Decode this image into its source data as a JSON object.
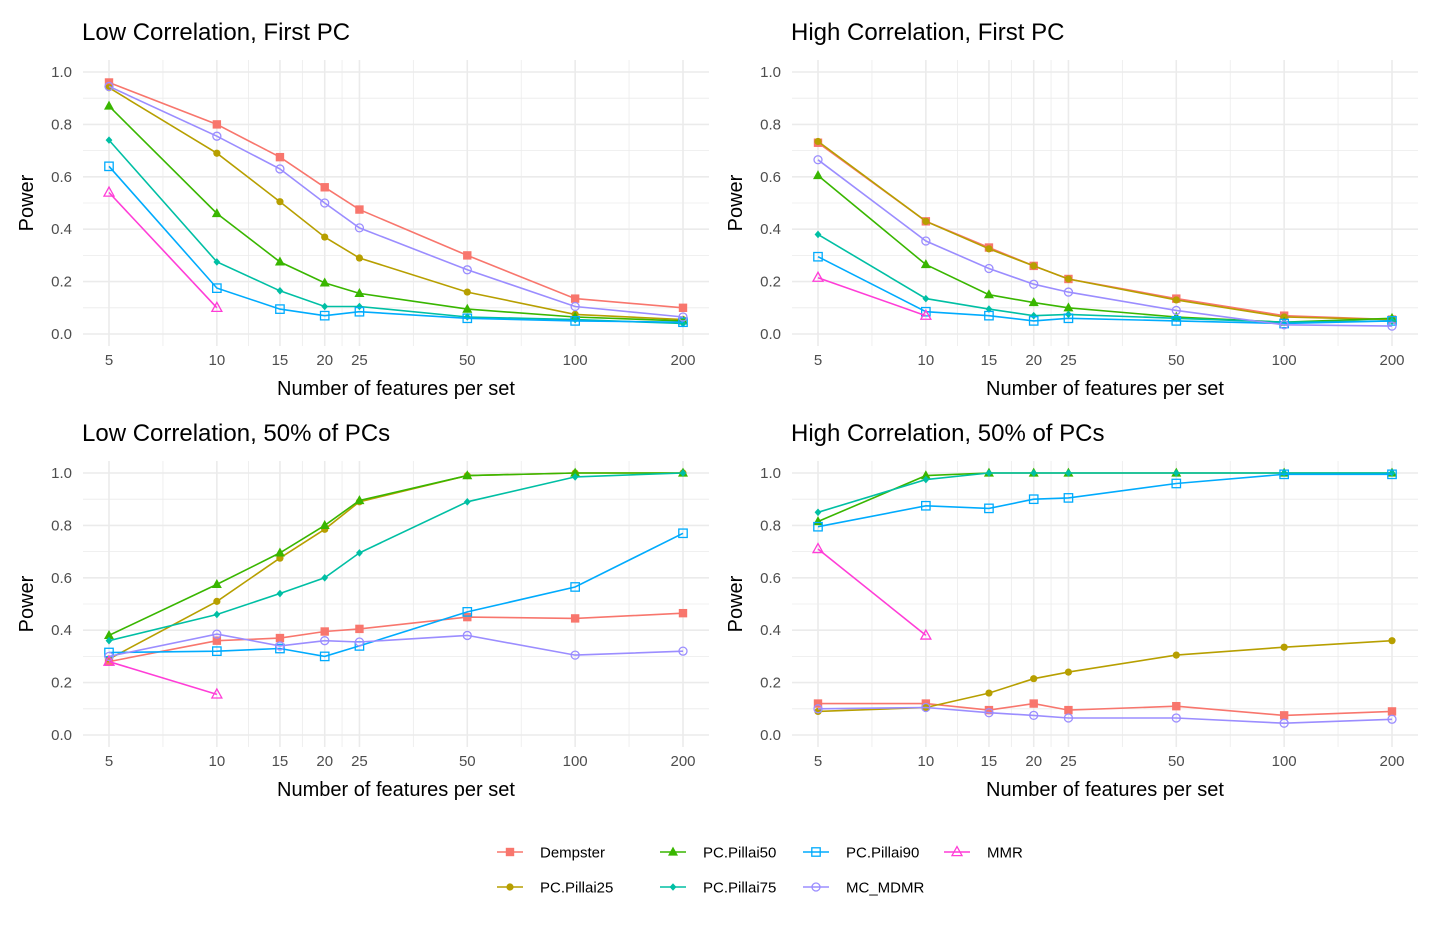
{
  "chart_data": [
    {
      "type": "line",
      "title": "Low Correlation, First PC",
      "xlabel": "Number of features per set",
      "ylabel": "Power",
      "x_scale": "log",
      "x_ticks": [
        5,
        10,
        15,
        20,
        25,
        50,
        100,
        200
      ],
      "y_ticks": [
        0.0,
        0.2,
        0.4,
        0.6,
        0.8,
        1.0
      ],
      "ylim": [
        0,
        1
      ],
      "series": [
        {
          "name": "Dempster",
          "x": [
            5,
            10,
            15,
            20,
            25,
            50,
            100,
            200
          ],
          "values": [
            0.96,
            0.8,
            0.675,
            0.56,
            0.475,
            0.3,
            0.135,
            0.1
          ]
        },
        {
          "name": "PC.Pillai25",
          "x": [
            5,
            10,
            15,
            20,
            25,
            50,
            100,
            200
          ],
          "values": [
            0.94,
            0.69,
            0.505,
            0.37,
            0.29,
            0.16,
            0.075,
            0.055
          ]
        },
        {
          "name": "PC.Pillai50",
          "x": [
            5,
            10,
            15,
            20,
            25,
            50,
            100,
            200
          ],
          "values": [
            0.87,
            0.46,
            0.275,
            0.195,
            0.155,
            0.095,
            0.065,
            0.05
          ]
        },
        {
          "name": "PC.Pillai75",
          "x": [
            5,
            10,
            15,
            20,
            25,
            50,
            100,
            200
          ],
          "values": [
            0.74,
            0.275,
            0.165,
            0.105,
            0.105,
            0.065,
            0.055,
            0.04
          ]
        },
        {
          "name": "PC.Pillai90",
          "x": [
            5,
            10,
            15,
            20,
            25,
            50,
            100,
            200
          ],
          "values": [
            0.64,
            0.175,
            0.095,
            0.07,
            0.085,
            0.06,
            0.05,
            0.045
          ]
        },
        {
          "name": "MC_MDMR",
          "x": [
            5,
            10,
            15,
            20,
            25,
            50,
            100,
            200
          ],
          "values": [
            0.945,
            0.755,
            0.63,
            0.5,
            0.405,
            0.245,
            0.105,
            0.065
          ]
        },
        {
          "name": "MMR",
          "x": [
            5,
            10
          ],
          "values": [
            0.54,
            0.1
          ]
        }
      ]
    },
    {
      "type": "line",
      "title": "High Correlation, First PC",
      "xlabel": "Number of features per set",
      "ylabel": "Power",
      "x_scale": "log",
      "x_ticks": [
        5,
        10,
        15,
        20,
        25,
        50,
        100,
        200
      ],
      "y_ticks": [
        0.0,
        0.2,
        0.4,
        0.6,
        0.8,
        1.0
      ],
      "ylim": [
        0,
        1
      ],
      "series": [
        {
          "name": "Dempster",
          "x": [
            5,
            10,
            15,
            20,
            25,
            50,
            100,
            200
          ],
          "values": [
            0.73,
            0.43,
            0.33,
            0.26,
            0.21,
            0.135,
            0.07,
            0.055
          ]
        },
        {
          "name": "PC.Pillai25",
          "x": [
            5,
            10,
            15,
            20,
            25,
            50,
            100,
            200
          ],
          "values": [
            0.735,
            0.43,
            0.325,
            0.26,
            0.21,
            0.13,
            0.065,
            0.055
          ]
        },
        {
          "name": "PC.Pillai50",
          "x": [
            5,
            10,
            15,
            20,
            25,
            50,
            100,
            200
          ],
          "values": [
            0.605,
            0.265,
            0.15,
            0.12,
            0.1,
            0.065,
            0.045,
            0.06
          ]
        },
        {
          "name": "PC.Pillai75",
          "x": [
            5,
            10,
            15,
            20,
            25,
            50,
            100,
            200
          ],
          "values": [
            0.38,
            0.135,
            0.095,
            0.07,
            0.075,
            0.06,
            0.045,
            0.05
          ]
        },
        {
          "name": "PC.Pillai90",
          "x": [
            5,
            10,
            15,
            20,
            25,
            50,
            100,
            200
          ],
          "values": [
            0.295,
            0.085,
            0.07,
            0.05,
            0.06,
            0.05,
            0.04,
            0.05
          ]
        },
        {
          "name": "MC_MDMR",
          "x": [
            5,
            10,
            15,
            20,
            25,
            50,
            100,
            200
          ],
          "values": [
            0.665,
            0.355,
            0.25,
            0.19,
            0.16,
            0.09,
            0.035,
            0.03
          ]
        },
        {
          "name": "MMR",
          "x": [
            5,
            10
          ],
          "values": [
            0.215,
            0.07
          ]
        }
      ]
    },
    {
      "type": "line",
      "title": "Low Correlation, 50% of PCs",
      "xlabel": "Number of features per set",
      "ylabel": "Power",
      "x_scale": "log",
      "x_ticks": [
        5,
        10,
        15,
        20,
        25,
        50,
        100,
        200
      ],
      "y_ticks": [
        0.0,
        0.2,
        0.4,
        0.6,
        0.8,
        1.0
      ],
      "ylim": [
        0,
        1
      ],
      "series": [
        {
          "name": "Dempster",
          "x": [
            5,
            10,
            15,
            20,
            25,
            50,
            100,
            200
          ],
          "values": [
            0.28,
            0.36,
            0.37,
            0.395,
            0.405,
            0.45,
            0.445,
            0.465
          ]
        },
        {
          "name": "PC.Pillai25",
          "x": [
            5,
            10,
            15,
            20,
            25,
            50,
            100,
            200
          ],
          "values": [
            0.29,
            0.51,
            0.675,
            0.785,
            0.89,
            0.99,
            1.0,
            1.0
          ]
        },
        {
          "name": "PC.Pillai50",
          "x": [
            5,
            10,
            15,
            20,
            25,
            50,
            100,
            200
          ],
          "values": [
            0.38,
            0.575,
            0.695,
            0.8,
            0.895,
            0.99,
            1.0,
            1.0
          ]
        },
        {
          "name": "PC.Pillai75",
          "x": [
            5,
            10,
            15,
            20,
            25,
            50,
            100,
            200
          ],
          "values": [
            0.36,
            0.46,
            0.54,
            0.6,
            0.695,
            0.89,
            0.985,
            1.0
          ]
        },
        {
          "name": "PC.Pillai90",
          "x": [
            5,
            10,
            15,
            20,
            25,
            50,
            100,
            200
          ],
          "values": [
            0.315,
            0.32,
            0.33,
            0.3,
            0.34,
            0.47,
            0.565,
            0.77
          ]
        },
        {
          "name": "MC_MDMR",
          "x": [
            5,
            10,
            15,
            20,
            25,
            50,
            100,
            200
          ],
          "values": [
            0.3,
            0.385,
            0.34,
            0.36,
            0.355,
            0.38,
            0.305,
            0.32
          ]
        },
        {
          "name": "MMR",
          "x": [
            5,
            10
          ],
          "values": [
            0.28,
            0.155
          ]
        }
      ]
    },
    {
      "type": "line",
      "title": "High Correlation, 50% of PCs",
      "xlabel": "Number of features per set",
      "ylabel": "Power",
      "x_scale": "log",
      "x_ticks": [
        5,
        10,
        15,
        20,
        25,
        50,
        100,
        200
      ],
      "y_ticks": [
        0.0,
        0.2,
        0.4,
        0.6,
        0.8,
        1.0
      ],
      "ylim": [
        0,
        1
      ],
      "series": [
        {
          "name": "Dempster",
          "x": [
            5,
            10,
            15,
            20,
            25,
            50,
            100,
            200
          ],
          "values": [
            0.12,
            0.12,
            0.095,
            0.12,
            0.095,
            0.11,
            0.075,
            0.09
          ]
        },
        {
          "name": "PC.Pillai25",
          "x": [
            5,
            10,
            15,
            20,
            25,
            50,
            100,
            200
          ],
          "values": [
            0.09,
            0.105,
            0.16,
            0.215,
            0.24,
            0.305,
            0.335,
            0.36
          ]
        },
        {
          "name": "PC.Pillai50",
          "x": [
            5,
            10,
            15,
            20,
            25,
            50,
            100,
            200
          ],
          "values": [
            0.815,
            0.99,
            1.0,
            1.0,
            1.0,
            1.0,
            1.0,
            1.0
          ]
        },
        {
          "name": "PC.Pillai75",
          "x": [
            5,
            10,
            15,
            20,
            25,
            50,
            100,
            200
          ],
          "values": [
            0.85,
            0.975,
            1.0,
            1.0,
            1.0,
            1.0,
            1.0,
            1.0
          ]
        },
        {
          "name": "PC.Pillai90",
          "x": [
            5,
            10,
            15,
            20,
            25,
            50,
            100,
            200
          ],
          "values": [
            0.795,
            0.875,
            0.865,
            0.9,
            0.905,
            0.96,
            0.995,
            0.995
          ]
        },
        {
          "name": "MC_MDMR",
          "x": [
            5,
            10,
            15,
            20,
            25,
            50,
            100,
            200
          ],
          "values": [
            0.1,
            0.105,
            0.085,
            0.075,
            0.065,
            0.065,
            0.045,
            0.06
          ]
        },
        {
          "name": "MMR",
          "x": [
            5,
            10
          ],
          "values": [
            0.71,
            0.38
          ]
        }
      ]
    }
  ],
  "legend": {
    "placement": "bottom",
    "items": [
      {
        "name": "Dempster",
        "color": "#F8766D",
        "marker": "square"
      },
      {
        "name": "PC.Pillai50",
        "color": "#39B600",
        "marker": "triangle"
      },
      {
        "name": "PC.Pillai90",
        "color": "#00ABFD",
        "marker": "open-square"
      },
      {
        "name": "MMR",
        "color": "#FF3DD7",
        "marker": "open-triangle"
      },
      {
        "name": "PC.Pillai25",
        "color": "#B79F00",
        "marker": "circle"
      },
      {
        "name": "PC.Pillai75",
        "color": "#00BFA4",
        "marker": "diamond"
      },
      {
        "name": "MC_MDMR",
        "color": "#9B8DFF",
        "marker": "open-circle"
      }
    ]
  }
}
